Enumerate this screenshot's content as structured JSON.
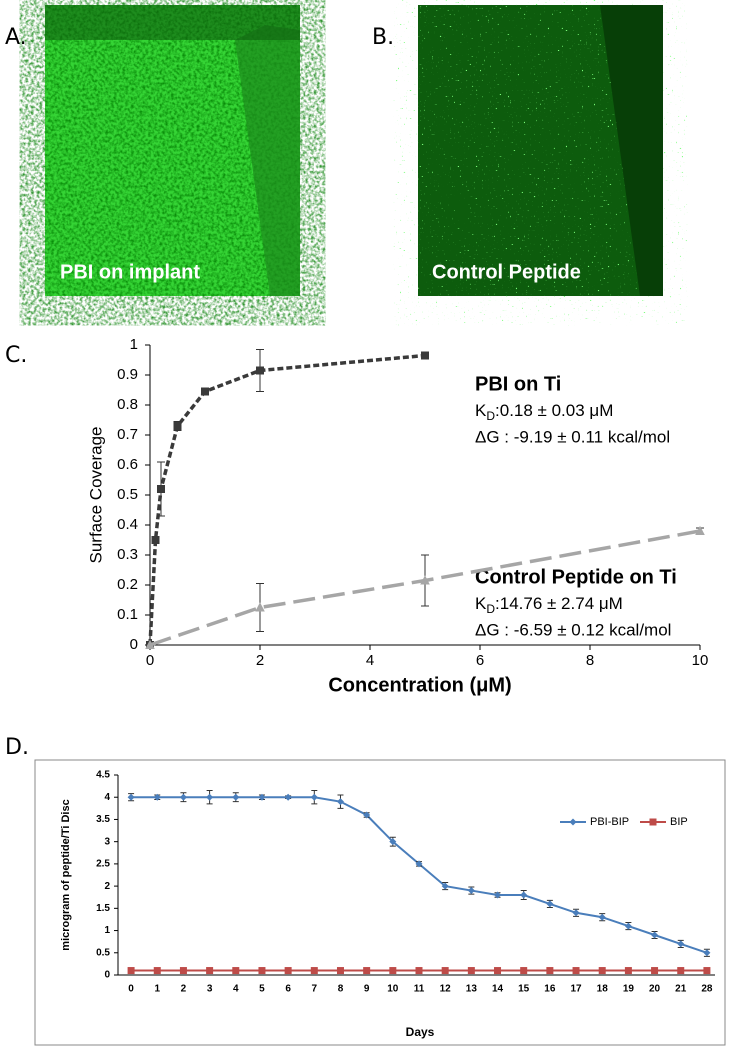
{
  "panels": [
    {
      "label": "A.",
      "caption": "PBI on implant"
    },
    {
      "label": "B.",
      "caption": "Control Peptide"
    }
  ],
  "chart_data": [
    {
      "type": "scatter",
      "panel_label": "C.",
      "xlabel": "Concentration (μM)",
      "ylabel": "Surface Coverage",
      "xlim": [
        0,
        10
      ],
      "xticks": [
        0,
        2,
        4,
        6,
        8,
        10
      ],
      "ylim": [
        0,
        1
      ],
      "yticks": [
        0,
        0.1,
        0.2,
        0.3,
        0.4,
        0.5,
        0.6,
        0.7,
        0.8,
        0.9,
        1
      ],
      "series": [
        {
          "name": "PBI on Ti",
          "color": "#3a3a3a",
          "marker": "square",
          "x": [
            0,
            0.1,
            0.2,
            0.5,
            1,
            2,
            5
          ],
          "values": [
            0,
            0.35,
            0.52,
            0.73,
            0.845,
            0.915,
            0.965
          ],
          "errors": [
            0,
            0.01,
            0.09,
            0.015,
            0.01,
            0.07,
            0.005
          ]
        },
        {
          "name": "Control Peptide on Ti",
          "color": "#a6a6a6",
          "marker": "triangle",
          "x": [
            0,
            2,
            5,
            10
          ],
          "values": [
            0,
            0.125,
            0.215,
            0.38
          ],
          "errors": [
            0,
            0.08,
            0.085,
            0.01
          ]
        }
      ],
      "annotations": [
        {
          "title": "PBI on Ti",
          "kd": {
            "symbol": "K",
            "sub": "D",
            "text": ":0.18 ± 0.03 μM"
          },
          "dg": "ΔG : -9.19 ± 0.11 kcal/mol"
        },
        {
          "title": "Control Peptide on Ti",
          "kd": {
            "symbol": "K",
            "sub": "D",
            "text": ":14.76 ± 2.74 μM"
          },
          "dg": "ΔG : -6.59 ± 0.12 kcal/mol"
        }
      ]
    },
    {
      "type": "line",
      "panel_label": "D.",
      "xlabel": "Days",
      "ylabel": "microgram of peptide/Ti Disc",
      "categories": [
        "0",
        "1",
        "2",
        "3",
        "4",
        "5",
        "6",
        "7",
        "8",
        "9",
        "10",
        "11",
        "12",
        "13",
        "14",
        "15",
        "16",
        "17",
        "18",
        "19",
        "20",
        "21",
        "28"
      ],
      "ylim": [
        0,
        4.5
      ],
      "yticks": [
        0,
        0.5,
        1,
        1.5,
        2,
        2.5,
        3,
        3.5,
        4,
        4.5
      ],
      "legend": "top-right",
      "series": [
        {
          "name": "PBI-BIP",
          "color": "#4a7ebb",
          "marker": "diamond",
          "values": [
            4,
            4,
            4,
            4,
            4,
            4,
            4,
            4,
            3.9,
            3.6,
            3.0,
            2.5,
            2.0,
            1.9,
            1.8,
            1.8,
            1.6,
            1.4,
            1.3,
            1.1,
            0.9,
            0.7,
            0.5
          ],
          "errors": [
            0.08,
            0.05,
            0.1,
            0.15,
            0.1,
            0.05,
            0.03,
            0.15,
            0.15,
            0.05,
            0.1,
            0.05,
            0.08,
            0.08,
            0.05,
            0.1,
            0.08,
            0.08,
            0.08,
            0.08,
            0.08,
            0.08,
            0.08
          ]
        },
        {
          "name": "BIP",
          "color": "#be4b48",
          "marker": "square",
          "values": [
            0.1,
            0.1,
            0.1,
            0.1,
            0.1,
            0.1,
            0.1,
            0.1,
            0.1,
            0.1,
            0.1,
            0.1,
            0.1,
            0.1,
            0.1,
            0.1,
            0.1,
            0.1,
            0.1,
            0.1,
            0.1,
            0.1,
            0.1
          ],
          "errors": [
            0.05,
            0.05,
            0.05,
            0.05,
            0.05,
            0.05,
            0.05,
            0.05,
            0.05,
            0.05,
            0.05,
            0.05,
            0.05,
            0.05,
            0.05,
            0.05,
            0.05,
            0.05,
            0.05,
            0.05,
            0.05,
            0.05,
            0.05
          ]
        }
      ]
    }
  ]
}
